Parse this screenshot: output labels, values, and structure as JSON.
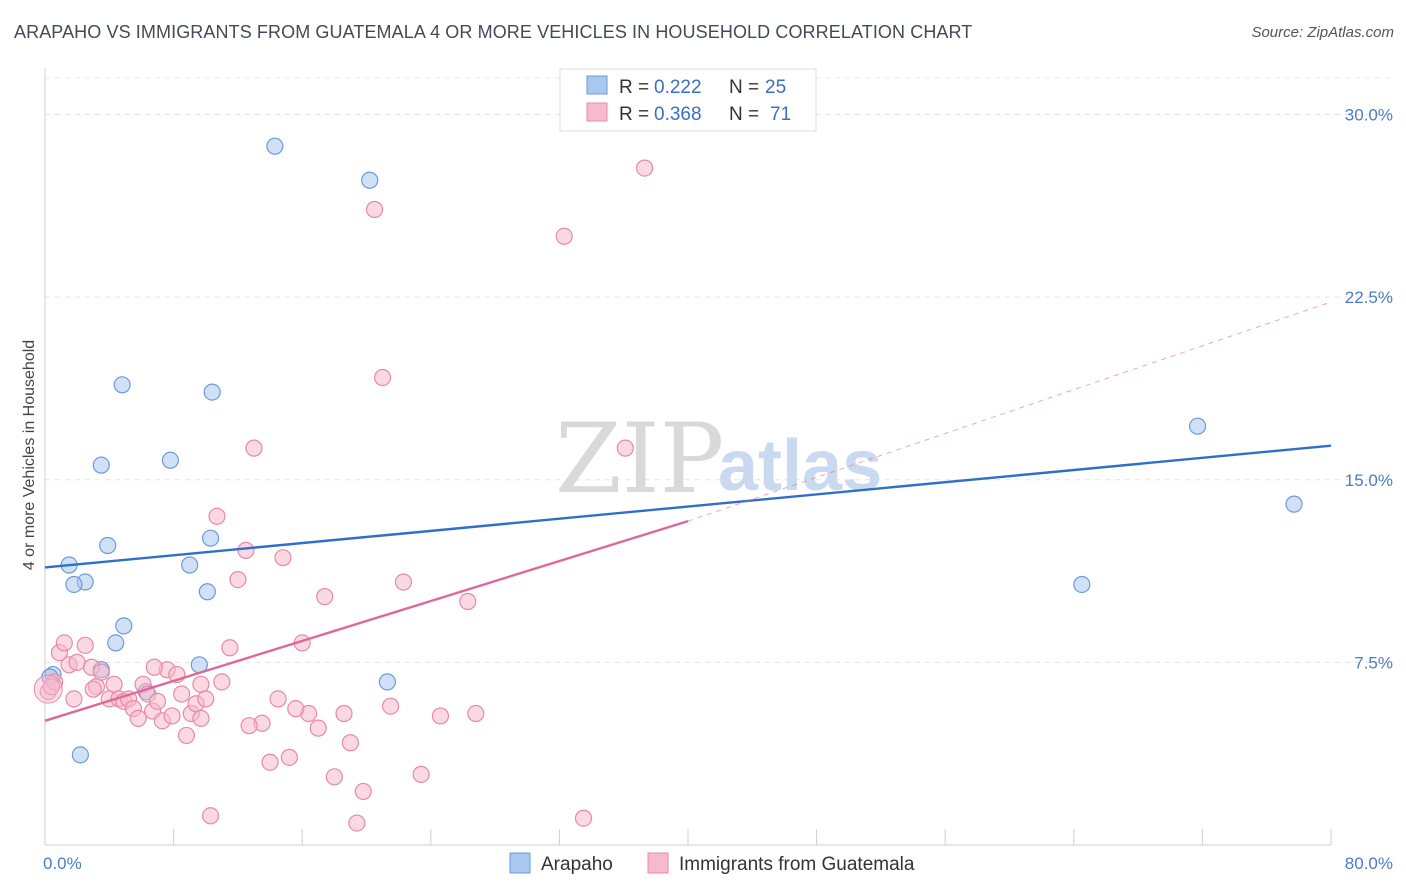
{
  "title": "ARAPAHO VS IMMIGRANTS FROM GUATEMALA 4 OR MORE VEHICLES IN HOUSEHOLD CORRELATION CHART",
  "source": "Source: ZipAtlas.com",
  "watermark": {
    "zip": "ZIP",
    "atlas": "atlas"
  },
  "legend_box": {
    "rows": [
      {
        "r_label": "R =",
        "r_value": "0.222",
        "n_label": "N =",
        "n_value": "25",
        "color": "#a9c8f0"
      },
      {
        "r_label": "R =",
        "r_value": "0.368",
        "n_label": "N =",
        "n_value": "71",
        "color": "#f7b9cc"
      }
    ]
  },
  "chart_data": {
    "type": "scatter",
    "title": "ARAPAHO VS IMMIGRANTS FROM GUATEMALA 4 OR MORE VEHICLES IN HOUSEHOLD CORRELATION CHART",
    "xlabel": "",
    "ylabel": "4 or more Vehicles in Household",
    "xlim": [
      0,
      80
    ],
    "ylim": [
      0,
      31.5
    ],
    "x_tick_labels": [
      "0.0%",
      "80.0%"
    ],
    "y_ticks": [
      7.5,
      15.0,
      22.5,
      30.0
    ],
    "y_tick_labels": [
      "7.5%",
      "15.0%",
      "22.5%",
      "30.0%"
    ],
    "grid": true,
    "legend_position": "top-center",
    "series": [
      {
        "name": "Arapaho",
        "color": "#a9c8f0",
        "stroke": "#6d9bd6",
        "line_color": "#2f6fcb",
        "trend": {
          "x0": 0,
          "y0": 11.4,
          "x1": 80,
          "y1": 16.4,
          "dashed_from": null
        },
        "points": [
          [
            0.5,
            7.0
          ],
          [
            2.5,
            10.8
          ],
          [
            1.5,
            11.5
          ],
          [
            1.8,
            10.7
          ],
          [
            3.5,
            7.2
          ],
          [
            2.2,
            3.7
          ],
          [
            3.5,
            15.6
          ],
          [
            4.8,
            18.9
          ],
          [
            3.9,
            12.3
          ],
          [
            4.4,
            8.3
          ],
          [
            4.9,
            9.0
          ],
          [
            6.3,
            6.3
          ],
          [
            7.8,
            15.8
          ],
          [
            9.0,
            11.5
          ],
          [
            9.6,
            7.4
          ],
          [
            10.1,
            10.4
          ],
          [
            10.3,
            12.6
          ],
          [
            10.4,
            18.6
          ],
          [
            14.3,
            28.7
          ],
          [
            20.2,
            27.3
          ],
          [
            21.3,
            6.7
          ],
          [
            71.7,
            17.2
          ],
          [
            77.7,
            14.0
          ],
          [
            64.5,
            10.7
          ],
          [
            0.3,
            6.9
          ]
        ]
      },
      {
        "name": "Immigrants from Guatemala",
        "color": "#f7b9cc",
        "stroke": "#e78aa6",
        "line_color": "#e0679a",
        "trend": {
          "x0": 0,
          "y0": 5.1,
          "x1": 40,
          "y1": 13.3,
          "dashed_to": {
            "x": 80,
            "y": 22.3
          }
        },
        "points": [
          [
            0.2,
            6.3
          ],
          [
            0.6,
            6.7
          ],
          [
            0.9,
            7.9
          ],
          [
            1.2,
            8.3
          ],
          [
            1.5,
            7.4
          ],
          [
            2.0,
            7.5
          ],
          [
            2.5,
            8.2
          ],
          [
            2.9,
            7.3
          ],
          [
            3.2,
            6.5
          ],
          [
            3.5,
            7.1
          ],
          [
            4.0,
            6.0
          ],
          [
            4.3,
            6.6
          ],
          [
            4.6,
            6.0
          ],
          [
            4.9,
            5.9
          ],
          [
            5.2,
            6.0
          ],
          [
            5.5,
            5.6
          ],
          [
            5.8,
            5.2
          ],
          [
            6.1,
            6.6
          ],
          [
            6.4,
            6.2
          ],
          [
            6.7,
            5.5
          ],
          [
            7.0,
            5.9
          ],
          [
            7.3,
            5.1
          ],
          [
            7.6,
            7.2
          ],
          [
            7.9,
            5.3
          ],
          [
            8.2,
            7.0
          ],
          [
            8.5,
            6.2
          ],
          [
            8.8,
            4.5
          ],
          [
            9.1,
            5.4
          ],
          [
            9.4,
            5.8
          ],
          [
            9.7,
            6.6
          ],
          [
            10.0,
            6.0
          ],
          [
            10.3,
            1.2
          ],
          [
            10.7,
            13.5
          ],
          [
            11.0,
            6.7
          ],
          [
            11.5,
            8.1
          ],
          [
            12.0,
            10.9
          ],
          [
            12.5,
            12.1
          ],
          [
            13.0,
            16.3
          ],
          [
            13.5,
            5.0
          ],
          [
            14.0,
            3.4
          ],
          [
            14.5,
            6.0
          ],
          [
            14.8,
            11.8
          ],
          [
            15.2,
            3.6
          ],
          [
            16.0,
            8.3
          ],
          [
            16.4,
            5.4
          ],
          [
            17.0,
            4.8
          ],
          [
            17.4,
            10.2
          ],
          [
            18.0,
            2.8
          ],
          [
            18.6,
            5.4
          ],
          [
            19.0,
            4.2
          ],
          [
            19.4,
            0.9
          ],
          [
            19.8,
            2.2
          ],
          [
            20.5,
            26.1
          ],
          [
            21.0,
            19.2
          ],
          [
            21.5,
            5.7
          ],
          [
            22.3,
            10.8
          ],
          [
            23.4,
            2.9
          ],
          [
            24.6,
            5.3
          ],
          [
            26.3,
            10.0
          ],
          [
            26.8,
            5.4
          ],
          [
            32.3,
            25.0
          ],
          [
            33.5,
            1.1
          ],
          [
            36.1,
            16.3
          ],
          [
            37.3,
            27.8
          ],
          [
            0.4,
            6.5
          ],
          [
            1.8,
            6.0
          ],
          [
            12.7,
            4.9
          ],
          [
            9.7,
            5.2
          ],
          [
            3.0,
            6.4
          ],
          [
            6.8,
            7.3
          ],
          [
            15.6,
            5.6
          ]
        ]
      }
    ]
  }
}
